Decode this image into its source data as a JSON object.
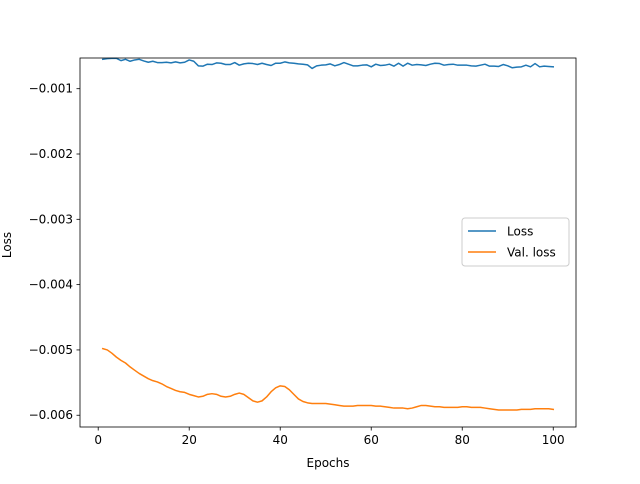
{
  "chart_data": {
    "type": "line",
    "title": "",
    "xlabel": "Epochs",
    "ylabel": "Loss",
    "xlim": [
      -4,
      105
    ],
    "ylim": [
      -0.00618,
      -0.00053
    ],
    "xticks": [
      0,
      20,
      40,
      60,
      80,
      100
    ],
    "yticks": [
      -0.001,
      -0.002,
      -0.003,
      -0.004,
      -0.005,
      -0.006
    ],
    "ytick_labels": [
      "−0.001",
      "−0.002",
      "−0.003",
      "−0.004",
      "−0.005",
      "−0.006"
    ],
    "grid": false,
    "legend": "center-right",
    "x": [
      1,
      2,
      3,
      4,
      5,
      6,
      7,
      8,
      9,
      10,
      11,
      12,
      13,
      14,
      15,
      16,
      17,
      18,
      19,
      20,
      21,
      22,
      23,
      24,
      25,
      26,
      27,
      28,
      29,
      30,
      31,
      32,
      33,
      34,
      35,
      36,
      37,
      38,
      39,
      40,
      41,
      42,
      43,
      44,
      45,
      46,
      47,
      48,
      49,
      50,
      51,
      52,
      53,
      54,
      55,
      56,
      57,
      58,
      59,
      60,
      61,
      62,
      63,
      64,
      65,
      66,
      67,
      68,
      69,
      70,
      71,
      72,
      73,
      74,
      75,
      76,
      77,
      78,
      79,
      80,
      81,
      82,
      83,
      84,
      85,
      86,
      87,
      88,
      89,
      90,
      91,
      92,
      93,
      94,
      95,
      96,
      97,
      98,
      99,
      100
    ],
    "series": [
      {
        "name": "Loss",
        "color": "#1f77b4",
        "values": [
          -0.00055,
          -0.00054,
          -0.000535,
          -0.000535,
          -0.00057,
          -0.00055,
          -0.00058,
          -0.00056,
          -0.00055,
          -0.000575,
          -0.000595,
          -0.00058,
          -0.0006,
          -0.0006,
          -0.000595,
          -0.000605,
          -0.00059,
          -0.000605,
          -0.000595,
          -0.00056,
          -0.00058,
          -0.00065,
          -0.000655,
          -0.000625,
          -0.00063,
          -0.000605,
          -0.00061,
          -0.00063,
          -0.00063,
          -0.0006,
          -0.00064,
          -0.00062,
          -0.00061,
          -0.000615,
          -0.00063,
          -0.00061,
          -0.00063,
          -0.000645,
          -0.00061,
          -0.00061,
          -0.00059,
          -0.000605,
          -0.00061,
          -0.00062,
          -0.000625,
          -0.000635,
          -0.00069,
          -0.00065,
          -0.00064,
          -0.000635,
          -0.00062,
          -0.00065,
          -0.00063,
          -0.0006,
          -0.000625,
          -0.00065,
          -0.00065,
          -0.00064,
          -0.000635,
          -0.000665,
          -0.000625,
          -0.000645,
          -0.00064,
          -0.000625,
          -0.000655,
          -0.00061,
          -0.000655,
          -0.00061,
          -0.00064,
          -0.00063,
          -0.000635,
          -0.000645,
          -0.000625,
          -0.00061,
          -0.000615,
          -0.00064,
          -0.00063,
          -0.000625,
          -0.00064,
          -0.00064,
          -0.00064,
          -0.00065,
          -0.000655,
          -0.00064,
          -0.000625,
          -0.000655,
          -0.000655,
          -0.00066,
          -0.00063,
          -0.00065,
          -0.00068,
          -0.00067,
          -0.000665,
          -0.00064,
          -0.000665,
          -0.000615,
          -0.000665,
          -0.000655,
          -0.00066,
          -0.000665
        ]
      },
      {
        "name": "Val. loss",
        "color": "#ff7f0e",
        "values": [
          -0.00498,
          -0.005,
          -0.00505,
          -0.00511,
          -0.00516,
          -0.0052,
          -0.00526,
          -0.00531,
          -0.00536,
          -0.0054,
          -0.00544,
          -0.00547,
          -0.00549,
          -0.00552,
          -0.00556,
          -0.00559,
          -0.00562,
          -0.00564,
          -0.00565,
          -0.00568,
          -0.0057,
          -0.00572,
          -0.00571,
          -0.00568,
          -0.00567,
          -0.00568,
          -0.00571,
          -0.00572,
          -0.00571,
          -0.00568,
          -0.00566,
          -0.00568,
          -0.00573,
          -0.00578,
          -0.0058,
          -0.00578,
          -0.00572,
          -0.00564,
          -0.00558,
          -0.00555,
          -0.00556,
          -0.00561,
          -0.00568,
          -0.00575,
          -0.00579,
          -0.00581,
          -0.00582,
          -0.00582,
          -0.00582,
          -0.00582,
          -0.00583,
          -0.00584,
          -0.00585,
          -0.00586,
          -0.00586,
          -0.00586,
          -0.00585,
          -0.00585,
          -0.00585,
          -0.00585,
          -0.00586,
          -0.00586,
          -0.00587,
          -0.00588,
          -0.00589,
          -0.00589,
          -0.00589,
          -0.0059,
          -0.00589,
          -0.00587,
          -0.00585,
          -0.00585,
          -0.00586,
          -0.00587,
          -0.00587,
          -0.00588,
          -0.00588,
          -0.00588,
          -0.00588,
          -0.00587,
          -0.00587,
          -0.00588,
          -0.00588,
          -0.00588,
          -0.00589,
          -0.0059,
          -0.00591,
          -0.00592,
          -0.00592,
          -0.00592,
          -0.00592,
          -0.00592,
          -0.00591,
          -0.00591,
          -0.00591,
          -0.0059,
          -0.0059,
          -0.0059,
          -0.0059,
          -0.00591
        ]
      }
    ]
  }
}
